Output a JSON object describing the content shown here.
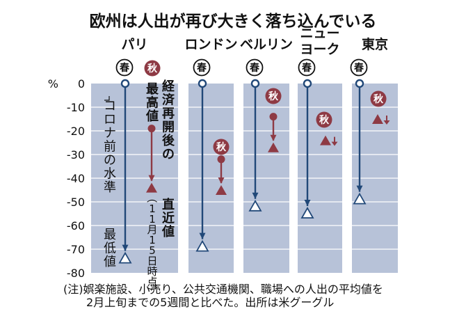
{
  "chart_data": {
    "type": "dot-range",
    "title": "欧州は人出が再び大きく落ち込んでいる",
    "y_unit": "%",
    "ylim": [
      -80,
      0
    ],
    "y_ticks": [
      "0",
      "-10",
      "-20",
      "-30",
      "-40",
      "-50",
      "-60",
      "-70",
      "-80"
    ],
    "spring_label": "春",
    "autumn_label": "秋",
    "cities": [
      {
        "name": [
          "パリ"
        ],
        "spring_start": 0,
        "spring_min": -74,
        "autumn_peak": -19,
        "autumn_latest": -44
      },
      {
        "name": [
          "ロンドン"
        ],
        "spring_start": 0,
        "spring_min": -69,
        "autumn_peak": -32,
        "autumn_latest": -45
      },
      {
        "name": [
          "ベルリン"
        ],
        "spring_start": 0,
        "spring_min": -52,
        "autumn_peak": -14,
        "autumn_latest": -27
      },
      {
        "name": [
          "ニュー",
          "ヨーク"
        ],
        "spring_start": 0,
        "spring_min": -55,
        "autumn_peak": -23,
        "autumn_latest": -24
      },
      {
        "name": [
          "東京"
        ],
        "spring_start": 0,
        "spring_min": -49,
        "autumn_peak": -14,
        "autumn_latest": -15
      }
    ],
    "annotations": {
      "pre_covid": "コロナ前の水準",
      "lowest": "最低値",
      "peak_after_reopen": "経済再開後の最高値",
      "latest": "直近値",
      "latest_date": "（11月15日時点）"
    },
    "note_lines": [
      "(注)娯楽施設、小売り、公共交通機関、職場への人出の平均値を",
      "2月上旬までの5週間と比べた。出所は米グーグル"
    ]
  },
  "colors": {
    "panel": "#b7c2d8",
    "spring": "#214878",
    "autumn": "#8e3a44",
    "grid": "#ffffff",
    "text": "#111111"
  }
}
